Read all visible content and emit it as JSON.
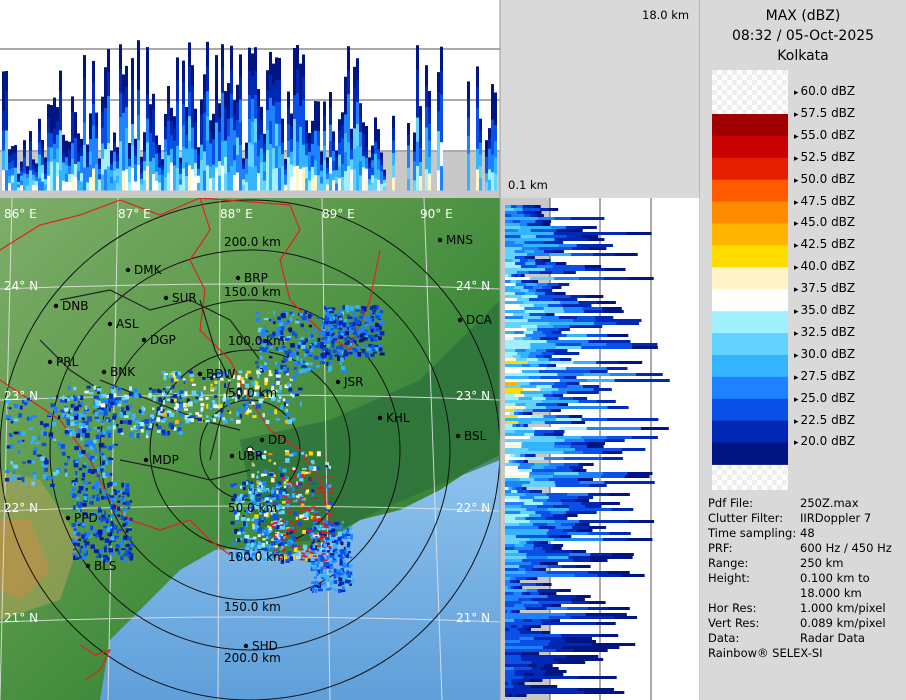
{
  "header": {
    "product": "MAX (dBZ)",
    "datetime": "08:32 / 05-Oct-2025",
    "station": "Kolkata"
  },
  "rulers": {
    "top_height": "18.0 km",
    "bottom_height": "0.1 km"
  },
  "legend": {
    "items": [
      {
        "label": "60.0 dBZ",
        "color": "#ffffff"
      },
      {
        "label": "57.5 dBZ",
        "color": "#a00000"
      },
      {
        "label": "55.0 dBZ",
        "color": "#c80000"
      },
      {
        "label": "52.5 dBZ",
        "color": "#e61e00"
      },
      {
        "label": "50.0 dBZ",
        "color": "#ff5a00"
      },
      {
        "label": "47.5 dBZ",
        "color": "#ff8c00"
      },
      {
        "label": "45.0 dBZ",
        "color": "#ffb400"
      },
      {
        "label": "42.5 dBZ",
        "color": "#ffdc00"
      },
      {
        "label": "40.0 dBZ",
        "color": "#fff5c8"
      },
      {
        "label": "37.5 dBZ",
        "color": "#ffffff"
      },
      {
        "label": "35.0 dBZ",
        "color": "#a0f0ff"
      },
      {
        "label": "32.5 dBZ",
        "color": "#64d2ff"
      },
      {
        "label": "30.0 dBZ",
        "color": "#32b4ff"
      },
      {
        "label": "27.5 dBZ",
        "color": "#1e82ff"
      },
      {
        "label": "25.0 dBZ",
        "color": "#0a50e6"
      },
      {
        "label": "22.5 dBZ",
        "color": "#0028b4"
      },
      {
        "label": "20.0 dBZ",
        "color": "#001482"
      }
    ]
  },
  "info": [
    {
      "key": "Pdf File:",
      "value": "250Z.max"
    },
    {
      "key": "Clutter Filter:",
      "value": "IIRDoppler 7"
    },
    {
      "key": "Time sampling:",
      "value": "48"
    },
    {
      "key": "PRF:",
      "value": "600 Hz / 450 Hz"
    },
    {
      "key": "Range:",
      "value": "250 km"
    },
    {
      "key": "Height:",
      "value": "0.100 km to"
    },
    {
      "key": "",
      "value": "18.000 km"
    },
    {
      "key": "Hor Res:",
      "value": "1.000 km/pixel"
    },
    {
      "key": "Vert Res:",
      "value": "0.089 km/pixel"
    },
    {
      "key": "Data:",
      "value": "Radar Data"
    }
  ],
  "credit": "Rainbow® SELEX-SI",
  "map": {
    "lon_labels": [
      "86° E",
      "87° E",
      "88° E",
      "89° E",
      "90° E"
    ],
    "lat_labels": [
      "24° N",
      "23° N",
      "22° N",
      "21° N"
    ],
    "range_labels": [
      "50.0 km",
      "100.0 km",
      "150.0 km",
      "200.0 km"
    ],
    "cities": [
      "MNS",
      "DMK",
      "BRP",
      "DNB",
      "SUR",
      "ASL",
      "DGP",
      "DCA",
      "PRL",
      "BNK",
      "BDW",
      "JSR",
      "KHL",
      "DD",
      "UBR",
      "MDP",
      "BSL",
      "PPD",
      "BLS",
      "SHD"
    ]
  }
}
